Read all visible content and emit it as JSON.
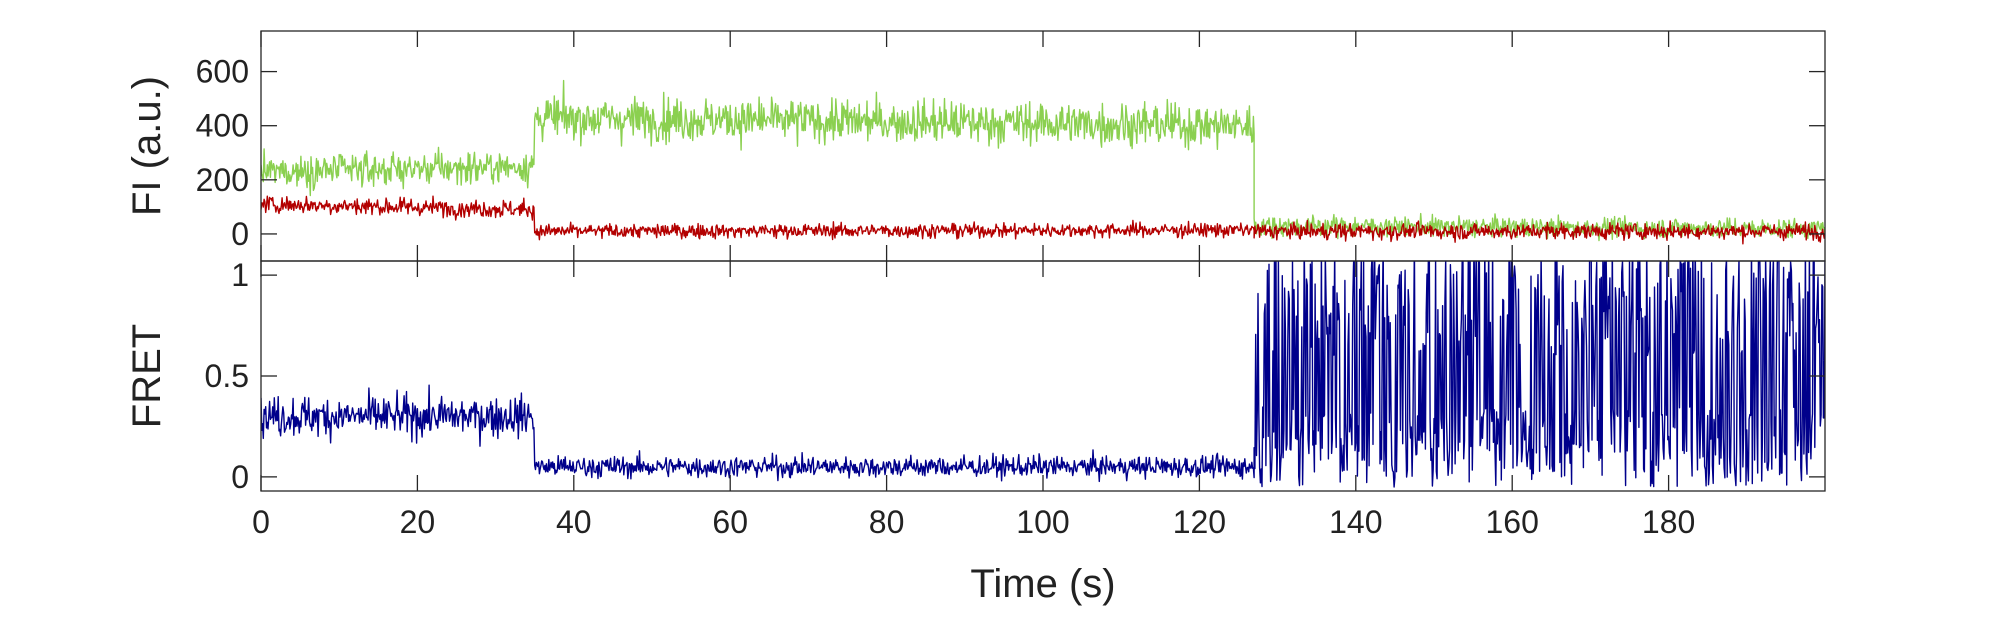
{
  "chart_data": [
    {
      "type": "line",
      "panel": "top",
      "ylabel": "FI (a.u.)",
      "xlim": [
        0,
        200
      ],
      "ylim": [
        -100,
        750
      ],
      "yticks": [
        0,
        200,
        400,
        600
      ],
      "ytick_labels": [
        "0",
        "200",
        "400",
        "600"
      ],
      "xticks": [
        0,
        20,
        40,
        60,
        80,
        100,
        120,
        140,
        160,
        180
      ],
      "grid": false,
      "series": [
        {
          "color": "#8bd050",
          "segments": [
            {
              "t_start": 0,
              "t_end": 35,
              "mean_start": 230,
              "mean_end": 250,
              "noise": 90
            },
            {
              "t_start": 35,
              "t_end": 127,
              "mean_start": 430,
              "mean_end": 400,
              "noise": 120
            },
            {
              "t_start": 127,
              "t_end": 200,
              "mean_start": 30,
              "mean_end": 20,
              "noise": 55
            }
          ]
        },
        {
          "color": "#b30000",
          "segments": [
            {
              "t_start": 0,
              "t_end": 35,
              "mean_start": 110,
              "mean_end": 90,
              "noise": 50
            },
            {
              "t_start": 35,
              "t_end": 127,
              "mean_start": 10,
              "mean_end": 15,
              "noise": 40
            },
            {
              "t_start": 127,
              "t_end": 200,
              "mean_start": 10,
              "mean_end": 10,
              "noise": 45
            }
          ]
        }
      ]
    },
    {
      "type": "line",
      "panel": "bottom",
      "xlabel": "Time (s)",
      "ylabel": "FRET",
      "xlim": [
        0,
        200
      ],
      "ylim": [
        -0.07,
        1.07
      ],
      "yticks": [
        0,
        0.5,
        1
      ],
      "ytick_labels": [
        "0",
        "0.5",
        "1"
      ],
      "xticks": [
        0,
        20,
        40,
        60,
        80,
        100,
        120,
        140,
        160,
        180
      ],
      "xtick_labels": [
        "0",
        "20",
        "40",
        "60",
        "80",
        "100",
        "120",
        "140",
        "160",
        "180"
      ],
      "grid": false,
      "series": [
        {
          "color": "#00008b",
          "segments": [
            {
              "t_start": 0,
              "t_end": 35,
              "mean_start": 0.3,
              "mean_end": 0.3,
              "noise": 0.15
            },
            {
              "t_start": 35,
              "t_end": 127,
              "mean_start": 0.05,
              "mean_end": 0.05,
              "noise": 0.08
            },
            {
              "t_start": 127,
              "t_end": 200,
              "mean_start": 0.5,
              "mean_end": 0.5,
              "noise": 0.9
            }
          ]
        }
      ]
    }
  ]
}
